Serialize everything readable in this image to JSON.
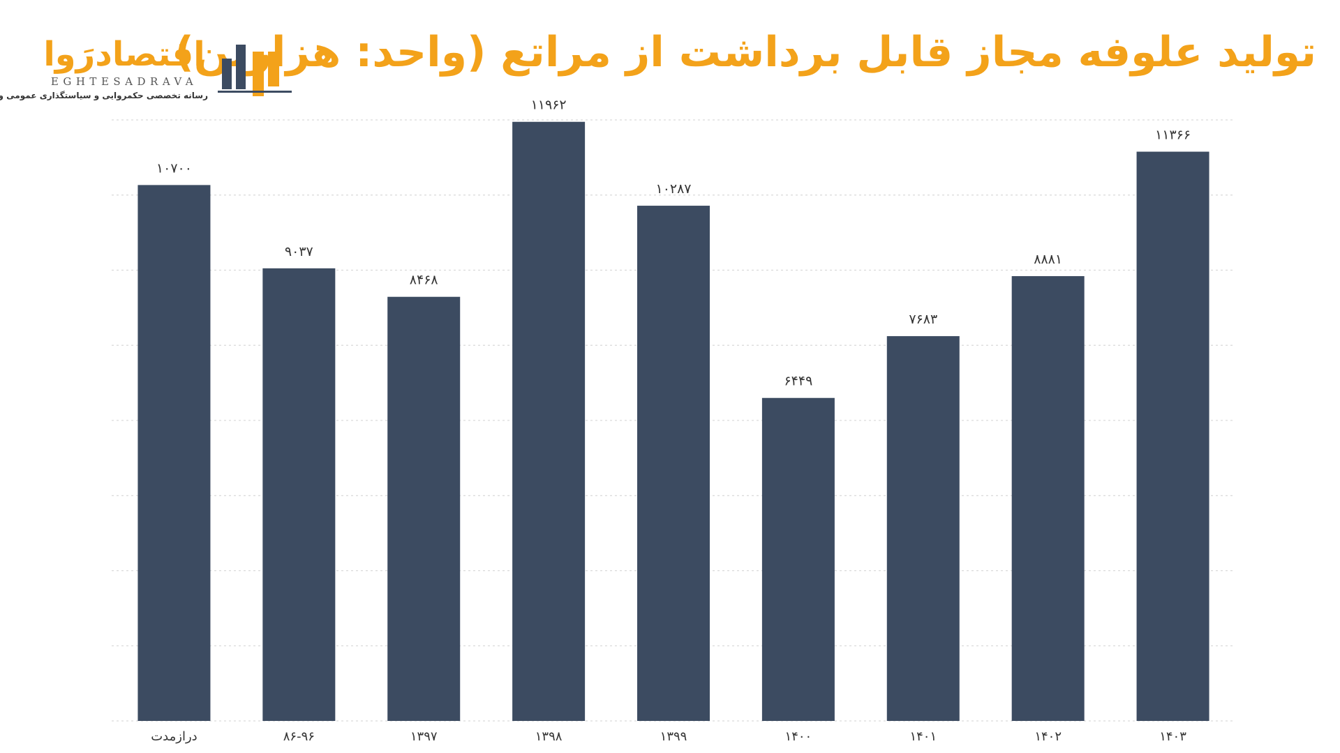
{
  "title": "تولید علوفه مجاز قابل برداشت از مراتع (واحد: هزارتن)",
  "logo": {
    "wordmark": "اقتصادرَوا",
    "latin": "EGHTESADRAVA",
    "tagline": "رسانه تخصصی حکمروایی و سیاستگذاری عمومی و اقتصادی"
  },
  "colors": {
    "bar": "#3c4b61",
    "title": "#f3a21a",
    "logo_dark": "#3c4b61",
    "logo_accent": "#f3a21a",
    "gridline": "#d9d9d9",
    "text": "#333333"
  },
  "chart_data": {
    "type": "bar",
    "title": "تولید علوفه مجاز قابل برداشت از مراتع (واحد: هزارتن)",
    "xlabel": "",
    "ylabel": "",
    "categories": [
      "درازمدت",
      "۸۶-۹۶",
      "۱۳۹۷",
      "۱۳۹۸",
      "۱۳۹۹",
      "۱۴۰۰",
      "۱۴۰۱",
      "۱۴۰۲",
      "۱۴۰۳"
    ],
    "values": [
      10700,
      9037,
      8468,
      11962,
      10287,
      6449,
      7683,
      8881,
      11366
    ],
    "value_labels": [
      "۱۰۷۰۰",
      "۹۰۳۷",
      "۸۴۶۸",
      "۱۱۹۶۲",
      "۱۰۲۸۷",
      "۶۴۴۹",
      "۷۶۸۳",
      "۸۸۸۱",
      "۱۱۳۶۶"
    ],
    "ylim": [
      0,
      12000
    ],
    "grid": true,
    "legend": "none"
  }
}
